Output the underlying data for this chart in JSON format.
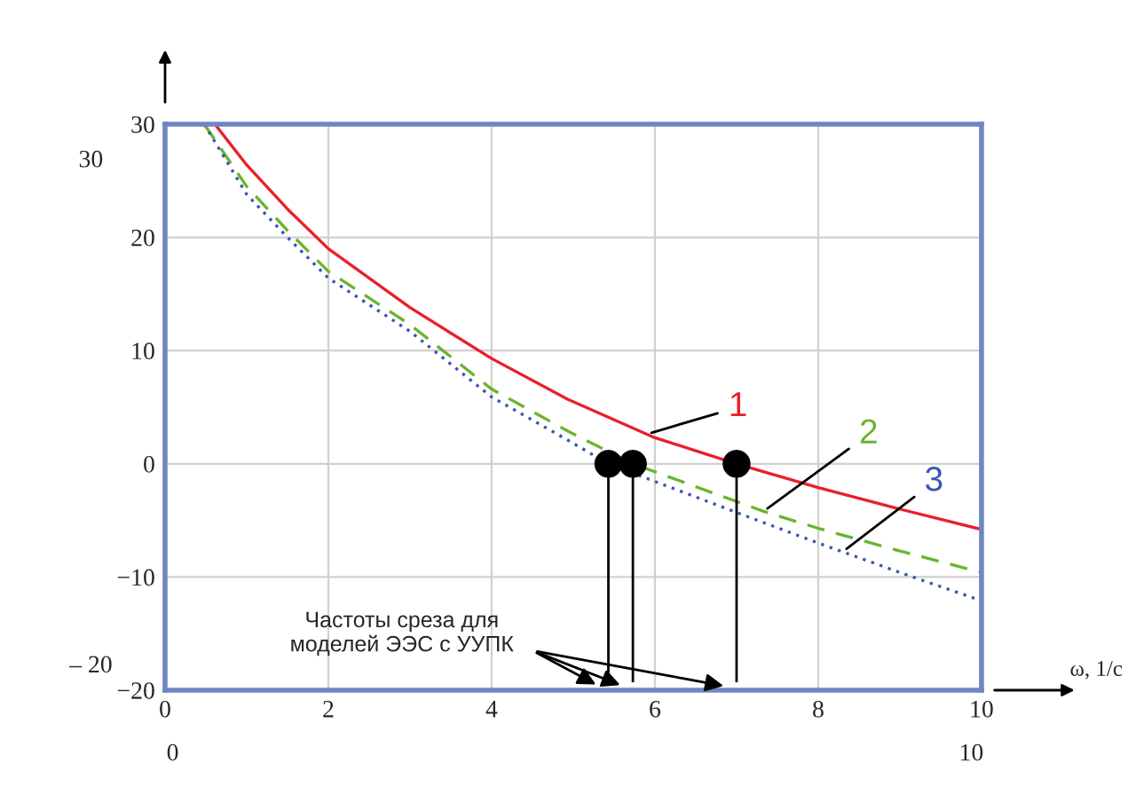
{
  "chart_data": {
    "type": "line",
    "xlabel": "ω, 1/с",
    "xlim": [
      0,
      10
    ],
    "xticks": [
      0,
      2,
      4,
      6,
      8,
      10
    ],
    "ylim": [
      -20,
      30
    ],
    "yticks": [
      {
        "value": -20,
        "label": "−20"
      },
      {
        "value": -10,
        "label": "−10"
      },
      0,
      10,
      20,
      30
    ],
    "grid": true,
    "legend": false,
    "series": [
      {
        "name": "1",
        "color": "#e8202a",
        "line_style": "solid",
        "marker": "none",
        "x": [
          0.61,
          1,
          1.5,
          2,
          3,
          4,
          4.93,
          6,
          7,
          8,
          9,
          10
        ],
        "values": [
          30,
          26.4,
          22.5,
          19.0,
          13.8,
          9.3,
          5.7,
          2.3,
          0,
          -2.1,
          -4.0,
          -5.8
        ]
      },
      {
        "name": "2",
        "color": "#6ab42d",
        "line_style": "dashed",
        "marker": "none",
        "x": [
          0.48,
          1,
          1.5,
          2,
          3,
          4,
          4.93,
          5.73,
          7.33,
          8,
          9,
          10
        ],
        "values": [
          30,
          24.5,
          20.6,
          17.0,
          12.3,
          6.6,
          2.9,
          0,
          -4.2,
          -5.7,
          -7.7,
          -9.6
        ]
      },
      {
        "name": "3",
        "color": "#3a55b4",
        "line_style": "dotted",
        "marker": "none",
        "x": [
          0.48,
          1,
          1.5,
          2,
          3,
          4,
          4.93,
          5.43,
          7,
          8,
          9,
          10
        ],
        "values": [
          30,
          23.8,
          20.0,
          16.4,
          11.7,
          5.9,
          2.1,
          0,
          -4.3,
          -7.0,
          -9.6,
          -12.1
        ]
      },
      {
        "type": "scatter",
        "color": "#000000",
        "marker": "circle",
        "x": [
          5.43,
          5.73,
          7.0
        ],
        "values": [
          0,
          0,
          0
        ],
        "errors": [
          [
            -19.3,
            0
          ],
          [
            -19.3,
            0
          ],
          [
            -19.3,
            0
          ]
        ]
      }
    ],
    "annotations": [
      "Частоты среза для\nмоделей ЭЭС с УУПК",
      "30",
      "– 20",
      "0",
      "10"
    ]
  }
}
